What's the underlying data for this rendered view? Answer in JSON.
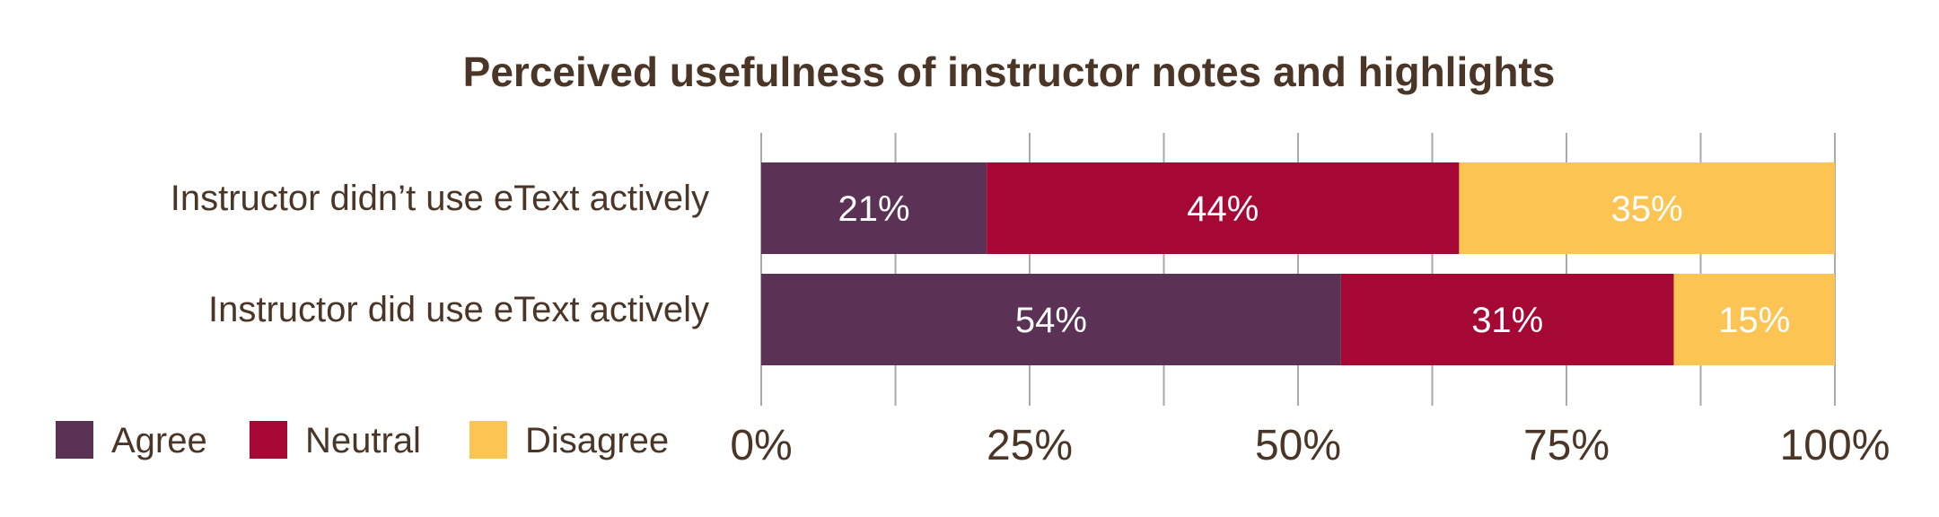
{
  "chart_data": {
    "type": "bar",
    "orientation": "horizontal",
    "stacked": true,
    "title": "Perceived usefulness of instructor notes and highlights",
    "categories": [
      "Instructor didn’t use eText actively",
      "Instructor did use eText actively"
    ],
    "series": [
      {
        "name": "Agree",
        "color": "#5b3255",
        "values": [
          21,
          54
        ],
        "labels": [
          "21%",
          "54%"
        ]
      },
      {
        "name": "Neutral",
        "color": "#a50834",
        "values": [
          44,
          31
        ],
        "labels": [
          "44%",
          "31%"
        ]
      },
      {
        "name": "Disagree",
        "color": "#fcc452",
        "values": [
          35,
          15
        ],
        "labels": [
          "35%",
          "15%"
        ]
      }
    ],
    "xlim": [
      0,
      100
    ],
    "ticks": [
      0,
      25,
      50,
      75,
      100
    ],
    "tick_labels": [
      "0%",
      "25%",
      "50%",
      "75%",
      "100%"
    ],
    "minor_ticks": [
      12.5,
      37.5,
      62.5,
      87.5
    ],
    "grid": true,
    "legend_position": "bottom-left",
    "colors": {
      "text": "#4a3526",
      "grid": "#aaaaaa",
      "data_label": "#ffffff"
    }
  }
}
